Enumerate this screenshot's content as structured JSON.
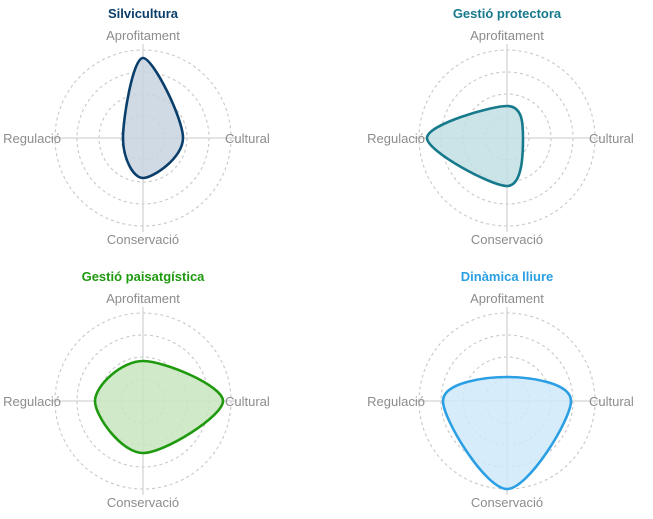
{
  "chart_data": [
    {
      "type": "radar",
      "title": "Silvicultura",
      "color": "#0b3f6b",
      "fill": "#c7d4e1",
      "axes": [
        "Aprofitament",
        "Cultural",
        "Conservació",
        "Regulació"
      ],
      "values": [
        4.0,
        2.0,
        2.0,
        1.0
      ],
      "rmax": 4.4,
      "rings": 4
    },
    {
      "type": "radar",
      "title": "Gestió protectora",
      "color": "#177a8c",
      "fill": "#c1dfe3",
      "axes": [
        "Aprofitament",
        "Cultural",
        "Conservació",
        "Regulació"
      ],
      "values": [
        1.6,
        0.8,
        2.4,
        4.0
      ],
      "rmax": 4.4,
      "rings": 4
    },
    {
      "type": "radar",
      "title": "Gestió paisatgística",
      "color": "#1f9a0f",
      "fill": "#c8e6c0",
      "axes": [
        "Aprofitament",
        "Cultural",
        "Conservació",
        "Regulació"
      ],
      "values": [
        2.0,
        4.0,
        2.6,
        2.4
      ],
      "rmax": 4.4,
      "rings": 4
    },
    {
      "type": "radar",
      "title": "Dinàmica lliure",
      "color": "#2b9fe3",
      "fill": "#cfe9fa",
      "axes": [
        "Aprofitament",
        "Cultural",
        "Conservació",
        "Regulació"
      ],
      "values": [
        1.2,
        3.2,
        4.4,
        3.2
      ],
      "rmax": 4.4,
      "rings": 4
    }
  ]
}
